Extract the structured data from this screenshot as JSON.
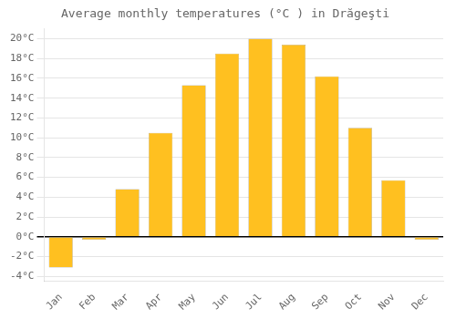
{
  "chart_data": {
    "type": "bar",
    "title": "Average monthly temperatures (°C ) in Drăgeşti",
    "categories": [
      "Jan",
      "Feb",
      "Mar",
      "Apr",
      "May",
      "Jun",
      "Jul",
      "Aug",
      "Sep",
      "Oct",
      "Nov",
      "Dec"
    ],
    "values": [
      -3.1,
      -0.3,
      4.8,
      10.5,
      15.3,
      18.5,
      20.0,
      19.4,
      16.2,
      11.0,
      5.7,
      -0.3
    ],
    "color": "#FFC020",
    "ylim": [
      -4.5,
      21
    ],
    "yticks": [
      {
        "value": -4,
        "label": "-4°C"
      },
      {
        "value": -2,
        "label": "-2°C"
      },
      {
        "value": 0,
        "label": "0°C"
      },
      {
        "value": 2,
        "label": "2°C"
      },
      {
        "value": 4,
        "label": "4°C"
      },
      {
        "value": 6,
        "label": "6°C"
      },
      {
        "value": 8,
        "label": "8°C"
      },
      {
        "value": 10,
        "label": "10°C"
      },
      {
        "value": 12,
        "label": "12°C"
      },
      {
        "value": 14,
        "label": "14°C"
      },
      {
        "value": 16,
        "label": "16°C"
      },
      {
        "value": 18,
        "label": "18°C"
      },
      {
        "value": 20,
        "label": "20°C"
      }
    ],
    "grid": true
  }
}
